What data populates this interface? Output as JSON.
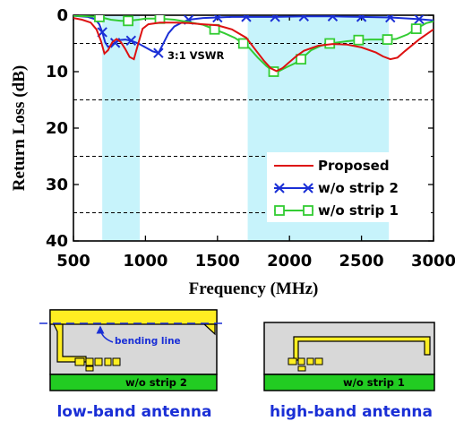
{
  "colors": {
    "proposed": "#dd1111",
    "strip2": "#1a2fd6",
    "strip1": "#33cc33",
    "band": "#c7f3fb",
    "ground": "#22cc22",
    "antenna_metal": "#ffee22",
    "substrate": "#d8d8d8",
    "caption": "#1a2fd6"
  },
  "chart_data": {
    "type": "line",
    "xlabel": "Frequency (MHz)",
    "ylabel": "Return Loss (dB)",
    "xlim": [
      500,
      3000
    ],
    "ylim": [
      0,
      40
    ],
    "y_inverted": true,
    "x_ticks": [
      500,
      1000,
      1500,
      2000,
      2500,
      3000
    ],
    "y_ticks": [
      0,
      10,
      20,
      30,
      40
    ],
    "dashed_grid_y": [
      5,
      15,
      25,
      35
    ],
    "shaded_bands": [
      [
        700,
        960
      ],
      [
        1710,
        2690
      ]
    ],
    "annotation": {
      "text": "3:1 VSWR",
      "y": 6
    },
    "legend_position": "lower-right",
    "series": [
      {
        "name": "Proposed",
        "color_key": "proposed",
        "marker": "none",
        "x": [
          500,
          560,
          620,
          660,
          690,
          715,
          740,
          770,
          800,
          830,
          860,
          890,
          920,
          950,
          980,
          1020,
          1100,
          1200,
          1300,
          1400,
          1500,
          1600,
          1700,
          1760,
          1820,
          1870,
          1910,
          1950,
          2000,
          2050,
          2100,
          2200,
          2300,
          2400,
          2500,
          2600,
          2650,
          2700,
          2750,
          2800,
          2900,
          3000
        ],
        "y": [
          0.5,
          0.8,
          1.3,
          2.5,
          4.5,
          6.8,
          6.2,
          4.8,
          4.2,
          4.8,
          6.0,
          7.4,
          7.8,
          5.0,
          2.4,
          1.6,
          1.3,
          1.3,
          1.4,
          1.6,
          1.8,
          2.5,
          4.0,
          6.0,
          8.0,
          9.4,
          9.9,
          9.4,
          8.3,
          7.2,
          6.3,
          5.4,
          5.1,
          5.2,
          5.7,
          6.6,
          7.3,
          7.8,
          7.5,
          6.4,
          4.3,
          2.5
        ]
      },
      {
        "name": "w/o strip 2",
        "color_key": "strip2",
        "marker": "x",
        "x": [
          500,
          600,
          650,
          680,
          700,
          720,
          740,
          760,
          790,
          820,
          860,
          900,
          950,
          1000,
          1050,
          1090,
          1120,
          1160,
          1200,
          1260,
          1300,
          1400,
          1500,
          1600,
          1700,
          1900,
          2100,
          2300,
          2500,
          2700,
          2900,
          3000
        ],
        "y": [
          0.1,
          0.3,
          0.7,
          1.6,
          3.0,
          4.8,
          5.6,
          5.4,
          4.9,
          4.4,
          4.3,
          4.5,
          5.0,
          5.7,
          6.4,
          6.7,
          5.2,
          3.2,
          2.0,
          1.2,
          0.8,
          0.5,
          0.4,
          0.3,
          0.3,
          0.3,
          0.2,
          0.2,
          0.3,
          0.4,
          0.7,
          0.9
        ],
        "markers_x": [
          700,
          790,
          900,
          1090,
          1300,
          1500,
          1700,
          1900,
          2100,
          2300,
          2500,
          2700,
          2900
        ]
      },
      {
        "name": "w/o strip 1",
        "color_key": "strip1",
        "marker": "square",
        "x": [
          500,
          600,
          680,
          760,
          830,
          880,
          950,
          1000,
          1100,
          1200,
          1300,
          1400,
          1480,
          1550,
          1620,
          1680,
          1720,
          1780,
          1840,
          1890,
          1920,
          1980,
          2040,
          2080,
          2150,
          2220,
          2280,
          2400,
          2480,
          2560,
          2680,
          2740,
          2820,
          2880,
          2950,
          3000
        ],
        "y": [
          0.1,
          0.2,
          0.3,
          0.8,
          1.0,
          1.0,
          0.8,
          0.6,
          0.6,
          0.8,
          1.2,
          1.7,
          2.5,
          3.2,
          4.0,
          5.0,
          5.8,
          7.5,
          9.0,
          10.0,
          10.0,
          9.2,
          8.5,
          7.8,
          6.2,
          5.4,
          5.0,
          4.6,
          4.4,
          4.3,
          4.3,
          4.2,
          3.4,
          2.4,
          1.4,
          1.1
        ],
        "markers_x": [
          680,
          880,
          1100,
          1480,
          1680,
          1890,
          2080,
          2280,
          2480,
          2680,
          2880
        ]
      }
    ]
  },
  "diagrams": [
    {
      "label": "w/o strip 2",
      "annotation": "bending line",
      "caption": "low-band antenna"
    },
    {
      "label": "w/o strip 1",
      "caption": "high-band antenna"
    }
  ]
}
